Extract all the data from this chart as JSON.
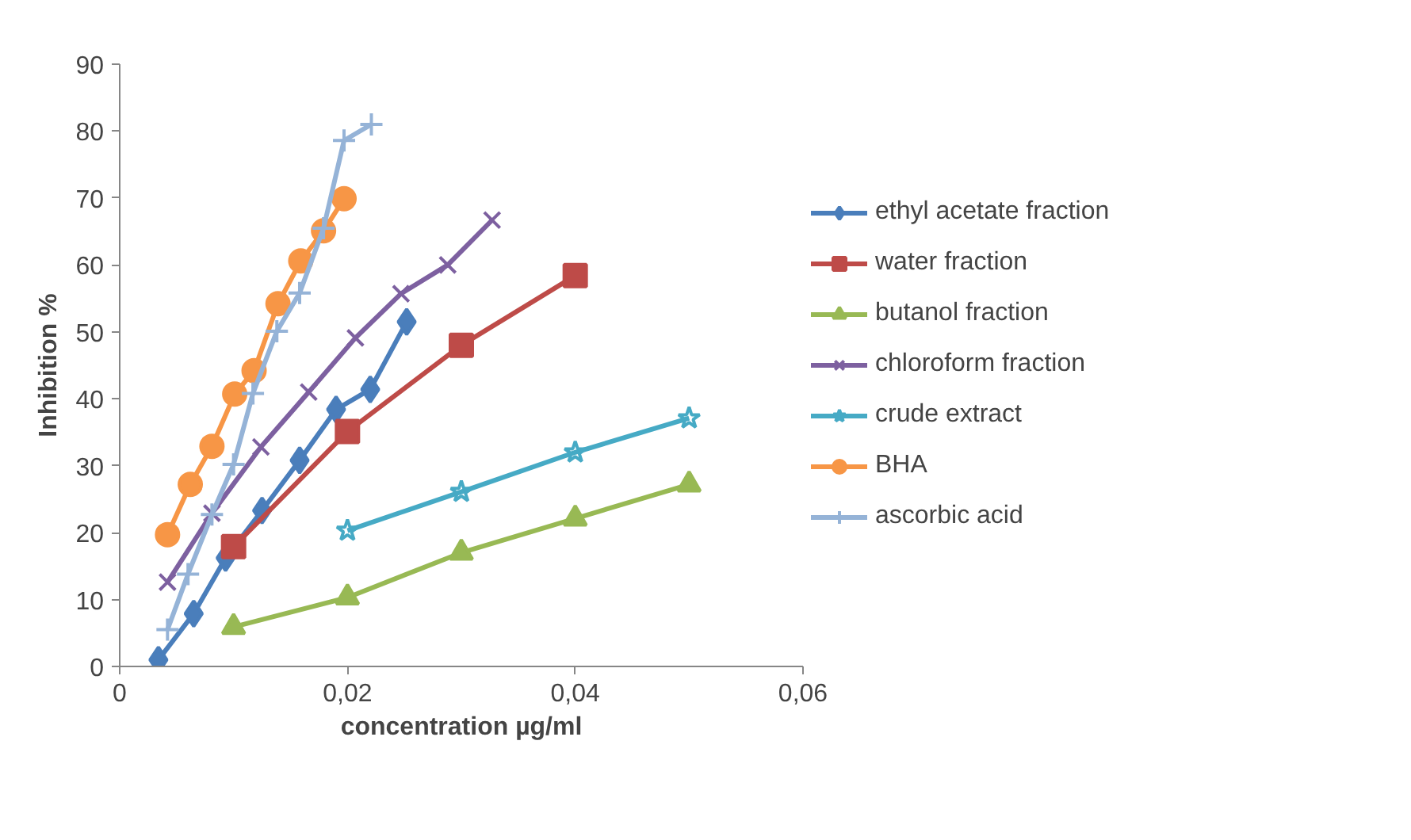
{
  "chart_data": {
    "type": "line",
    "xlabel": "concentration µg/ml",
    "ylabel": "Inhibition %",
    "xlim": [
      0,
      0.06
    ],
    "ylim": [
      0,
      90
    ],
    "xticks": [
      {
        "value": 0,
        "label": "0"
      },
      {
        "value": 0.02,
        "label": "0,02"
      },
      {
        "value": 0.04,
        "label": "0,04"
      },
      {
        "value": 0.06,
        "label": "0,06"
      }
    ],
    "yticks": [
      0,
      10,
      20,
      30,
      40,
      50,
      60,
      70,
      80,
      90
    ],
    "grid": false,
    "legend": "right",
    "series": [
      {
        "name": "ethyl acetate fraction",
        "color": "#4a7ebb",
        "marker": "diamond",
        "x": [
          0.0034,
          0.0065,
          0.0093,
          0.0125,
          0.0158,
          0.019,
          0.022,
          0.0252
        ],
        "values": [
          1,
          7.9,
          16.2,
          23.3,
          30.8,
          38.4,
          41.4,
          51.5
        ]
      },
      {
        "name": "water fraction",
        "color": "#be4b48",
        "marker": "square",
        "x": [
          0.01,
          0.02,
          0.03,
          0.04
        ],
        "values": [
          17.9,
          35.1,
          48,
          58.4
        ]
      },
      {
        "name": "butanol fraction",
        "color": "#98b954",
        "marker": "triangle",
        "x": [
          0.01,
          0.02,
          0.03,
          0.04,
          0.05
        ],
        "values": [
          5.9,
          10.3,
          17,
          22.1,
          27.2
        ]
      },
      {
        "name": "chloroform fraction",
        "color": "#7d60a0",
        "marker": "x",
        "x": [
          0.0042,
          0.0081,
          0.0124,
          0.0166,
          0.0207,
          0.0247,
          0.0288,
          0.0327
        ],
        "values": [
          12.6,
          22.9,
          32.8,
          41,
          49.1,
          55.7,
          60,
          66.7
        ]
      },
      {
        "name": "crude extract",
        "color": "#46aac5",
        "marker": "star",
        "x": [
          0.02,
          0.03,
          0.04,
          0.05
        ],
        "values": [
          20.3,
          26.1,
          32,
          37.1
        ]
      },
      {
        "name": "BHA",
        "color": "#f79646",
        "marker": "circle",
        "x": [
          0.0042,
          0.0062,
          0.0081,
          0.0101,
          0.0118,
          0.0139,
          0.0159,
          0.0179,
          0.0197
        ],
        "values": [
          19.7,
          27.2,
          32.9,
          40.7,
          44.2,
          54.2,
          60.6,
          65.1,
          69.9
        ]
      },
      {
        "name": "ascorbic acid",
        "color": "#95b3d7",
        "marker": "cross",
        "x": [
          0.0042,
          0.006,
          0.0081,
          0.01,
          0.0117,
          0.0138,
          0.0158,
          0.0179,
          0.0197,
          0.0221
        ],
        "values": [
          5.5,
          13.8,
          22.7,
          30.2,
          40.8,
          50.1,
          55.8,
          65.5,
          78.6,
          81
        ]
      }
    ]
  }
}
